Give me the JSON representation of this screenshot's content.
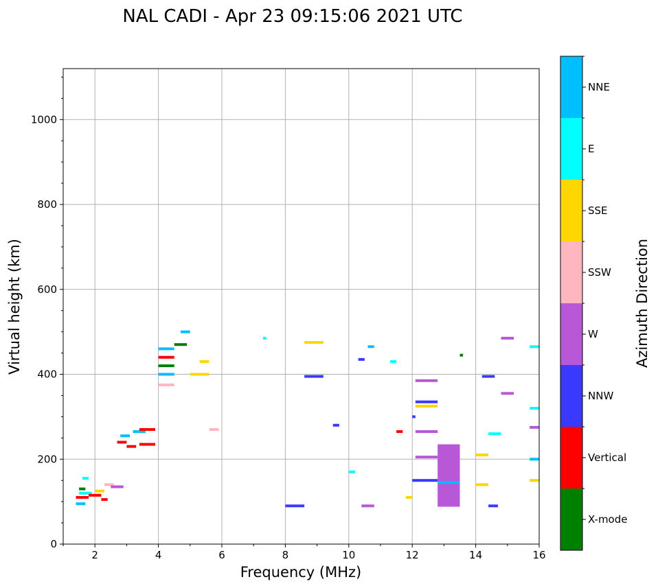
{
  "chart_data": {
    "type": "scatter",
    "title": "NAL CADI - Apr 23 09:15:06 2021 UTC",
    "xlabel": "Frequency (MHz)",
    "ylabel": "Virtual height (km)",
    "xlim": [
      1,
      16
    ],
    "ylim": [
      0,
      1120
    ],
    "xticks": [
      2,
      4,
      6,
      8,
      10,
      12,
      14,
      16
    ],
    "yticks": [
      0,
      200,
      400,
      600,
      800,
      1000
    ],
    "grid": true,
    "colorbar": {
      "title": "Azimuth Direction",
      "categories": [
        {
          "name": "X-mode",
          "color": "#008000"
        },
        {
          "name": "Vertical",
          "color": "#ff0000"
        },
        {
          "name": "NNW",
          "color": "#3a3aff"
        },
        {
          "name": "W",
          "color": "#b858d6"
        },
        {
          "name": "SSW",
          "color": "#ffb6c1"
        },
        {
          "name": "SSE",
          "color": "#ffd700"
        },
        {
          "name": "E",
          "color": "#00ffff"
        },
        {
          "name": "NNE",
          "color": "#00bfff"
        }
      ]
    },
    "echoes": [
      {
        "f": 1.4,
        "f2": 1.7,
        "h": 95,
        "dir": "NNE"
      },
      {
        "f": 1.4,
        "f2": 1.8,
        "h": 110,
        "dir": "Vertical"
      },
      {
        "f": 1.5,
        "f2": 1.9,
        "h": 120,
        "dir": "E"
      },
      {
        "f": 1.5,
        "f2": 1.7,
        "h": 130,
        "dir": "X-mode"
      },
      {
        "f": 1.6,
        "f2": 1.8,
        "h": 155,
        "dir": "E"
      },
      {
        "f": 1.8,
        "f2": 2.2,
        "h": 115,
        "dir": "Vertical"
      },
      {
        "f": 2.0,
        "f2": 2.3,
        "h": 125,
        "dir": "SSE"
      },
      {
        "f": 2.2,
        "f2": 2.4,
        "h": 105,
        "dir": "Vertical"
      },
      {
        "f": 2.3,
        "f2": 2.6,
        "h": 140,
        "dir": "SSW"
      },
      {
        "f": 2.5,
        "f2": 2.9,
        "h": 135,
        "dir": "W"
      },
      {
        "f": 2.7,
        "f2": 3.0,
        "h": 240,
        "dir": "Vertical"
      },
      {
        "f": 2.8,
        "f2": 3.1,
        "h": 255,
        "dir": "NNE"
      },
      {
        "f": 3.0,
        "f2": 3.3,
        "h": 230,
        "dir": "Vertical"
      },
      {
        "f": 3.2,
        "f2": 3.6,
        "h": 265,
        "dir": "NNE"
      },
      {
        "f": 3.4,
        "f2": 3.9,
        "h": 270,
        "dir": "Vertical"
      },
      {
        "f": 3.4,
        "f2": 3.9,
        "h": 235,
        "dir": "Vertical"
      },
      {
        "f": 4.0,
        "f2": 4.5,
        "h": 460,
        "dir": "NNE"
      },
      {
        "f": 4.0,
        "f2": 4.5,
        "h": 440,
        "dir": "Vertical"
      },
      {
        "f": 4.0,
        "f2": 4.5,
        "h": 420,
        "dir": "X-mode"
      },
      {
        "f": 4.0,
        "f2": 4.5,
        "h": 400,
        "dir": "NNE"
      },
      {
        "f": 4.0,
        "f2": 4.5,
        "h": 375,
        "dir": "SSW"
      },
      {
        "f": 4.5,
        "f2": 4.9,
        "h": 470,
        "dir": "X-mode"
      },
      {
        "f": 4.7,
        "f2": 5.0,
        "h": 500,
        "dir": "NNE"
      },
      {
        "f": 5.0,
        "f2": 5.6,
        "h": 400,
        "dir": "SSE"
      },
      {
        "f": 5.3,
        "f2": 5.6,
        "h": 430,
        "dir": "SSE"
      },
      {
        "f": 5.6,
        "f2": 5.9,
        "h": 270,
        "dir": "SSW"
      },
      {
        "f": 7.3,
        "f2": 7.4,
        "h": 485,
        "dir": "E"
      },
      {
        "f": 8.0,
        "f2": 8.6,
        "h": 90,
        "dir": "NNW"
      },
      {
        "f": 8.6,
        "f2": 9.2,
        "h": 395,
        "dir": "NNW"
      },
      {
        "f": 8.6,
        "f2": 9.2,
        "h": 475,
        "dir": "SSE"
      },
      {
        "f": 9.5,
        "f2": 9.7,
        "h": 280,
        "dir": "NNW"
      },
      {
        "f": 10.0,
        "f2": 10.2,
        "h": 170,
        "dir": "E"
      },
      {
        "f": 10.3,
        "f2": 10.5,
        "h": 435,
        "dir": "NNW"
      },
      {
        "f": 10.6,
        "f2": 10.8,
        "h": 465,
        "dir": "NNE"
      },
      {
        "f": 10.4,
        "f2": 10.8,
        "h": 90,
        "dir": "W"
      },
      {
        "f": 11.3,
        "f2": 11.5,
        "h": 430,
        "dir": "E"
      },
      {
        "f": 11.5,
        "f2": 11.7,
        "h": 265,
        "dir": "Vertical"
      },
      {
        "f": 11.8,
        "f2": 12.0,
        "h": 110,
        "dir": "SSE"
      },
      {
        "f": 12.0,
        "f2": 12.1,
        "h": 300,
        "dir": "NNW"
      },
      {
        "f": 12.1,
        "f2": 12.8,
        "h": 385,
        "dir": "W"
      },
      {
        "f": 12.1,
        "f2": 12.8,
        "h": 335,
        "dir": "NNW"
      },
      {
        "f": 12.1,
        "f2": 12.8,
        "h": 325,
        "dir": "SSE"
      },
      {
        "f": 12.1,
        "f2": 12.8,
        "h": 265,
        "dir": "W"
      },
      {
        "f": 12.1,
        "f2": 12.8,
        "h": 205,
        "dir": "W"
      },
      {
        "f": 12.0,
        "f2": 12.8,
        "h": 150,
        "dir": "NNW"
      },
      {
        "f": 12.8,
        "f2": 13.5,
        "h": 145,
        "dir": "NNE"
      },
      {
        "f": 13.5,
        "f2": 13.6,
        "h": 445,
        "dir": "X-mode"
      },
      {
        "f": 14.0,
        "f2": 14.4,
        "h": 210,
        "dir": "SSE"
      },
      {
        "f": 14.0,
        "f2": 14.4,
        "h": 140,
        "dir": "SSE"
      },
      {
        "f": 14.2,
        "f2": 14.6,
        "h": 395,
        "dir": "NNW"
      },
      {
        "f": 14.4,
        "f2": 14.8,
        "h": 260,
        "dir": "E"
      },
      {
        "f": 14.4,
        "f2": 14.7,
        "h": 90,
        "dir": "NNW"
      },
      {
        "f": 14.8,
        "f2": 15.2,
        "h": 485,
        "dir": "W"
      },
      {
        "f": 14.8,
        "f2": 15.2,
        "h": 355,
        "dir": "W"
      },
      {
        "f": 15.7,
        "f2": 16.0,
        "h": 465,
        "dir": "E"
      },
      {
        "f": 15.7,
        "f2": 16.0,
        "h": 320,
        "dir": "E"
      },
      {
        "f": 15.7,
        "f2": 16.0,
        "h": 275,
        "dir": "W"
      },
      {
        "f": 15.7,
        "f2": 16.0,
        "h": 200,
        "dir": "NNE"
      },
      {
        "f": 15.7,
        "f2": 16.0,
        "h": 150,
        "dir": "SSE"
      }
    ],
    "regions": [
      {
        "f": 12.8,
        "f2": 13.5,
        "h": 88,
        "h2": 235,
        "dir": "W"
      }
    ]
  }
}
